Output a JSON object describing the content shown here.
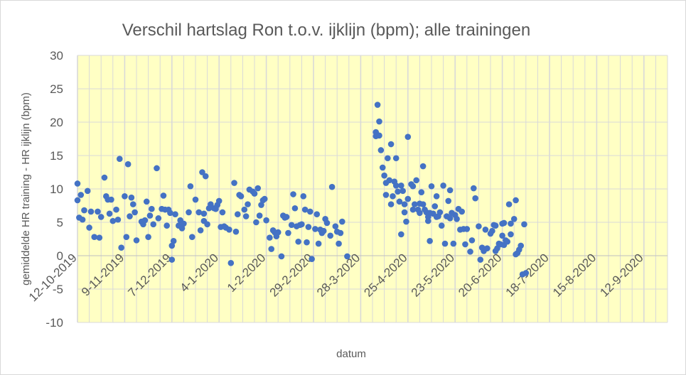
{
  "chart_data": {
    "type": "scatter",
    "title": "Verschil hartslag Ron t.o.v. ijklijn (bpm); alle trainingen",
    "xlabel": "datum",
    "ylabel": "gemiddelde HR training - HR ijklijn (bpm)",
    "ylim": [
      -10,
      30
    ],
    "yticks": [
      -10,
      -5,
      0,
      5,
      10,
      15,
      20,
      25,
      30
    ],
    "xlim": [
      "2019-10-12",
      "2020-09-26"
    ],
    "xtick_labels": [
      "12-10-2019",
      "9-11-2019",
      "7-12-2019",
      "4-1-2020",
      "1-2-2020",
      "29-2-2020",
      "28-3-2020",
      "25-4-2020",
      "23-5-2020",
      "20-6-2020",
      "18-7-2020",
      "15-8-2020",
      "12-9-2020"
    ],
    "grid": true,
    "legend": "none",
    "colors": {
      "points": "#4472c4",
      "plot_background": "#ffffc4",
      "gridlines": "#d9d9d9",
      "text": "#595959"
    },
    "points": [
      {
        "x": "2019-10-12",
        "y": 8.3
      },
      {
        "x": "2019-10-12",
        "y": 10.8
      },
      {
        "x": "2019-10-13",
        "y": 5.7
      },
      {
        "x": "2019-10-14",
        "y": 9.1
      },
      {
        "x": "2019-10-15",
        "y": 5.4
      },
      {
        "x": "2019-10-16",
        "y": 6.8
      },
      {
        "x": "2019-10-18",
        "y": 9.7
      },
      {
        "x": "2019-10-19",
        "y": 4.2
      },
      {
        "x": "2019-10-20",
        "y": 6.6
      },
      {
        "x": "2019-10-22",
        "y": 2.8
      },
      {
        "x": "2019-10-24",
        "y": 6.6
      },
      {
        "x": "2019-10-25",
        "y": 2.7
      },
      {
        "x": "2019-10-26",
        "y": 5.8
      },
      {
        "x": "2019-10-28",
        "y": 11.7
      },
      {
        "x": "2019-10-29",
        "y": 8.9
      },
      {
        "x": "2019-10-30",
        "y": 8.4
      },
      {
        "x": "2019-10-31",
        "y": 6.3
      },
      {
        "x": "2019-11-01",
        "y": 8.4
      },
      {
        "x": "2019-11-02",
        "y": 5.2
      },
      {
        "x": "2019-11-04",
        "y": 6.9
      },
      {
        "x": "2019-11-05",
        "y": 5.4
      },
      {
        "x": "2019-11-06",
        "y": 14.5
      },
      {
        "x": "2019-11-07",
        "y": 1.2
      },
      {
        "x": "2019-11-09",
        "y": 8.9
      },
      {
        "x": "2019-11-10",
        "y": 2.8
      },
      {
        "x": "2019-11-11",
        "y": 13.7
      },
      {
        "x": "2019-11-12",
        "y": 5.9
      },
      {
        "x": "2019-11-13",
        "y": 8.7
      },
      {
        "x": "2019-11-14",
        "y": 7.7
      },
      {
        "x": "2019-11-15",
        "y": 6.5
      },
      {
        "x": "2019-11-16",
        "y": 2.3
      },
      {
        "x": "2019-11-19",
        "y": 5.1
      },
      {
        "x": "2019-11-20",
        "y": 4.7
      },
      {
        "x": "2019-11-21",
        "y": 5.3
      },
      {
        "x": "2019-11-22",
        "y": 8.1
      },
      {
        "x": "2019-11-23",
        "y": 2.8
      },
      {
        "x": "2019-11-24",
        "y": 6.0
      },
      {
        "x": "2019-11-25",
        "y": 7.0
      },
      {
        "x": "2019-11-26",
        "y": 4.7
      },
      {
        "x": "2019-11-28",
        "y": 13.1
      },
      {
        "x": "2019-11-29",
        "y": 5.6
      },
      {
        "x": "2019-12-01",
        "y": 7.0
      },
      {
        "x": "2019-12-02",
        "y": 9.0
      },
      {
        "x": "2019-12-03",
        "y": 6.9
      },
      {
        "x": "2019-12-04",
        "y": 4.5
      },
      {
        "x": "2019-12-05",
        "y": 6.9
      },
      {
        "x": "2019-12-06",
        "y": 6.4
      },
      {
        "x": "2019-12-07",
        "y": -0.6
      },
      {
        "x": "2019-12-07",
        "y": 1.5
      },
      {
        "x": "2019-12-08",
        "y": 2.2
      },
      {
        "x": "2019-12-09",
        "y": 6.2
      },
      {
        "x": "2019-12-11",
        "y": 4.5
      },
      {
        "x": "2019-12-12",
        "y": 5.3
      },
      {
        "x": "2019-12-13",
        "y": 4.1
      },
      {
        "x": "2019-12-14",
        "y": 4.8
      },
      {
        "x": "2019-12-17",
        "y": 6.5
      },
      {
        "x": "2019-12-18",
        "y": 10.4
      },
      {
        "x": "2019-12-19",
        "y": 2.8
      },
      {
        "x": "2019-12-21",
        "y": 8.4
      },
      {
        "x": "2019-12-23",
        "y": 6.5
      },
      {
        "x": "2019-12-24",
        "y": 3.8
      },
      {
        "x": "2019-12-25",
        "y": 12.5
      },
      {
        "x": "2019-12-26",
        "y": 6.3
      },
      {
        "x": "2019-12-26",
        "y": 5.2
      },
      {
        "x": "2019-12-27",
        "y": 11.9
      },
      {
        "x": "2019-12-28",
        "y": 4.7
      },
      {
        "x": "2019-12-29",
        "y": 7.1
      },
      {
        "x": "2019-12-30",
        "y": 7.7
      },
      {
        "x": "2020-01-01",
        "y": 7.1
      },
      {
        "x": "2020-01-02",
        "y": 7.0
      },
      {
        "x": "2020-01-03",
        "y": 7.6
      },
      {
        "x": "2020-01-04",
        "y": 8.2
      },
      {
        "x": "2020-01-05",
        "y": 4.3
      },
      {
        "x": "2020-01-06",
        "y": 6.5
      },
      {
        "x": "2020-01-07",
        "y": 4.4
      },
      {
        "x": "2020-01-08",
        "y": 4.2
      },
      {
        "x": "2020-01-10",
        "y": 3.9
      },
      {
        "x": "2020-01-11",
        "y": -1.1
      },
      {
        "x": "2020-01-13",
        "y": 10.9
      },
      {
        "x": "2020-01-14",
        "y": 3.6
      },
      {
        "x": "2020-01-15",
        "y": 6.2
      },
      {
        "x": "2020-01-16",
        "y": 9.1
      },
      {
        "x": "2020-01-17",
        "y": 8.9
      },
      {
        "x": "2020-01-19",
        "y": 6.9
      },
      {
        "x": "2020-01-20",
        "y": 5.9
      },
      {
        "x": "2020-01-21",
        "y": 7.7
      },
      {
        "x": "2020-01-22",
        "y": 9.9
      },
      {
        "x": "2020-01-24",
        "y": 9.6
      },
      {
        "x": "2020-01-25",
        "y": 9.3
      },
      {
        "x": "2020-01-26",
        "y": 5.0
      },
      {
        "x": "2020-01-27",
        "y": 10.1
      },
      {
        "x": "2020-01-28",
        "y": 6.0
      },
      {
        "x": "2020-01-29",
        "y": 7.6
      },
      {
        "x": "2020-01-30",
        "y": 8.3
      },
      {
        "x": "2020-01-31",
        "y": 8.5
      },
      {
        "x": "2020-02-01",
        "y": 5.3
      },
      {
        "x": "2020-02-03",
        "y": 2.7
      },
      {
        "x": "2020-02-04",
        "y": 1.0
      },
      {
        "x": "2020-02-05",
        "y": 3.8
      },
      {
        "x": "2020-02-06",
        "y": 3.5
      },
      {
        "x": "2020-02-07",
        "y": 2.9
      },
      {
        "x": "2020-02-08",
        "y": 3.5
      },
      {
        "x": "2020-02-10",
        "y": -0.1
      },
      {
        "x": "2020-02-11",
        "y": 6.0
      },
      {
        "x": "2020-02-12",
        "y": 5.7
      },
      {
        "x": "2020-02-13",
        "y": 5.8
      },
      {
        "x": "2020-02-14",
        "y": 3.4
      },
      {
        "x": "2020-02-16",
        "y": 4.6
      },
      {
        "x": "2020-02-17",
        "y": 9.2
      },
      {
        "x": "2020-02-18",
        "y": 7.1
      },
      {
        "x": "2020-02-19",
        "y": 4.4
      },
      {
        "x": "2020-02-20",
        "y": 2.1
      },
      {
        "x": "2020-02-21",
        "y": 4.6
      },
      {
        "x": "2020-02-22",
        "y": 4.7
      },
      {
        "x": "2020-02-23",
        "y": 8.9
      },
      {
        "x": "2020-02-24",
        "y": 6.9
      },
      {
        "x": "2020-02-25",
        "y": 2.0
      },
      {
        "x": "2020-02-26",
        "y": 4.3
      },
      {
        "x": "2020-02-27",
        "y": 6.6
      },
      {
        "x": "2020-02-28",
        "y": -0.5
      },
      {
        "x": "2020-03-01",
        "y": 4.0
      },
      {
        "x": "2020-03-02",
        "y": 6.2
      },
      {
        "x": "2020-03-03",
        "y": 1.8
      },
      {
        "x": "2020-03-04",
        "y": 3.9
      },
      {
        "x": "2020-03-05",
        "y": 3.4
      },
      {
        "x": "2020-03-06",
        "y": 3.7
      },
      {
        "x": "2020-03-07",
        "y": 5.5
      },
      {
        "x": "2020-03-08",
        "y": 4.9
      },
      {
        "x": "2020-03-10",
        "y": 3.0
      },
      {
        "x": "2020-03-11",
        "y": 10.3
      },
      {
        "x": "2020-03-13",
        "y": 4.4
      },
      {
        "x": "2020-03-14",
        "y": 3.6
      },
      {
        "x": "2020-03-15",
        "y": 1.8
      },
      {
        "x": "2020-03-16",
        "y": 3.4
      },
      {
        "x": "2020-03-17",
        "y": 5.1
      },
      {
        "x": "2020-03-20",
        "y": -0.1
      },
      {
        "x": "2020-04-06",
        "y": 17.9
      },
      {
        "x": "2020-04-06",
        "y": 18.5
      },
      {
        "x": "2020-04-07",
        "y": 22.6
      },
      {
        "x": "2020-04-08",
        "y": 20.1
      },
      {
        "x": "2020-04-08",
        "y": 18.0
      },
      {
        "x": "2020-04-09",
        "y": 15.8
      },
      {
        "x": "2020-04-10",
        "y": 13.2
      },
      {
        "x": "2020-04-11",
        "y": 12.0
      },
      {
        "x": "2020-04-12",
        "y": 10.9
      },
      {
        "x": "2020-04-12",
        "y": 9.1
      },
      {
        "x": "2020-04-13",
        "y": 14.6
      },
      {
        "x": "2020-04-14",
        "y": 11.3
      },
      {
        "x": "2020-04-15",
        "y": 16.7
      },
      {
        "x": "2020-04-15",
        "y": 7.7
      },
      {
        "x": "2020-04-16",
        "y": 8.9
      },
      {
        "x": "2020-04-17",
        "y": 11.1
      },
      {
        "x": "2020-04-18",
        "y": 10.5
      },
      {
        "x": "2020-04-18",
        "y": 14.6
      },
      {
        "x": "2020-04-19",
        "y": 9.6
      },
      {
        "x": "2020-04-20",
        "y": 8.1
      },
      {
        "x": "2020-04-21",
        "y": 10.5
      },
      {
        "x": "2020-04-21",
        "y": 3.2
      },
      {
        "x": "2020-04-22",
        "y": 9.7
      },
      {
        "x": "2020-04-23",
        "y": 6.5
      },
      {
        "x": "2020-04-23",
        "y": 7.7
      },
      {
        "x": "2020-04-24",
        "y": 5.1
      },
      {
        "x": "2020-04-25",
        "y": 8.5
      },
      {
        "x": "2020-04-25",
        "y": 17.8
      },
      {
        "x": "2020-04-27",
        "y": 10.7
      },
      {
        "x": "2020-04-28",
        "y": 10.4
      },
      {
        "x": "2020-04-28",
        "y": 6.9
      },
      {
        "x": "2020-04-29",
        "y": 7.7
      },
      {
        "x": "2020-04-30",
        "y": 11.3
      },
      {
        "x": "2020-05-01",
        "y": 6.9
      },
      {
        "x": "2020-05-02",
        "y": 6.4
      },
      {
        "x": "2020-05-02",
        "y": 7.8
      },
      {
        "x": "2020-05-03",
        "y": 9.5
      },
      {
        "x": "2020-05-04",
        "y": 7.7
      },
      {
        "x": "2020-05-04",
        "y": 13.4
      },
      {
        "x": "2020-05-05",
        "y": 6.9
      },
      {
        "x": "2020-05-06",
        "y": 6.5
      },
      {
        "x": "2020-05-07",
        "y": 5.8
      },
      {
        "x": "2020-05-07",
        "y": 5.2
      },
      {
        "x": "2020-05-08",
        "y": 6.4
      },
      {
        "x": "2020-05-08",
        "y": 2.2
      },
      {
        "x": "2020-05-09",
        "y": 10.4
      },
      {
        "x": "2020-05-10",
        "y": 6.3
      },
      {
        "x": "2020-05-11",
        "y": 7.4
      },
      {
        "x": "2020-05-12",
        "y": 5.8
      },
      {
        "x": "2020-05-12",
        "y": 8.9
      },
      {
        "x": "2020-05-13",
        "y": 5.9
      },
      {
        "x": "2020-05-14",
        "y": 6.5
      },
      {
        "x": "2020-05-15",
        "y": 4.5
      },
      {
        "x": "2020-05-16",
        "y": 10.5
      },
      {
        "x": "2020-05-17",
        "y": 1.8
      },
      {
        "x": "2020-05-18",
        "y": 5.9
      },
      {
        "x": "2020-05-19",
        "y": 8.2
      },
      {
        "x": "2020-05-20",
        "y": 9.8
      },
      {
        "x": "2020-05-20",
        "y": 5.6
      },
      {
        "x": "2020-05-21",
        "y": 6.4
      },
      {
        "x": "2020-05-22",
        "y": 1.8
      },
      {
        "x": "2020-05-23",
        "y": 6.1
      },
      {
        "x": "2020-05-24",
        "y": 5.5
      },
      {
        "x": "2020-05-25",
        "y": 7.0
      },
      {
        "x": "2020-05-26",
        "y": 3.9
      },
      {
        "x": "2020-05-27",
        "y": 6.6
      },
      {
        "x": "2020-05-28",
        "y": 4.0
      },
      {
        "x": "2020-05-29",
        "y": 1.7
      },
      {
        "x": "2020-05-30",
        "y": 4.0
      },
      {
        "x": "2020-06-01",
        "y": 0.6
      },
      {
        "x": "2020-06-02",
        "y": 2.3
      },
      {
        "x": "2020-06-03",
        "y": 10.1
      },
      {
        "x": "2020-06-04",
        "y": 8.6
      },
      {
        "x": "2020-06-06",
        "y": 4.4
      },
      {
        "x": "2020-06-07",
        "y": -0.6
      },
      {
        "x": "2020-06-08",
        "y": 1.2
      },
      {
        "x": "2020-06-09",
        "y": 0.7
      },
      {
        "x": "2020-06-10",
        "y": 3.9
      },
      {
        "x": "2020-06-11",
        "y": 1.1
      },
      {
        "x": "2020-06-13",
        "y": 3.3
      },
      {
        "x": "2020-06-14",
        "y": 3.7
      },
      {
        "x": "2020-06-15",
        "y": 4.6
      },
      {
        "x": "2020-06-16",
        "y": 0.7
      },
      {
        "x": "2020-06-16",
        "y": 4.5
      },
      {
        "x": "2020-06-17",
        "y": 1.1
      },
      {
        "x": "2020-06-18",
        "y": 1.8
      },
      {
        "x": "2020-06-19",
        "y": 1.7
      },
      {
        "x": "2020-06-20",
        "y": 3.0
      },
      {
        "x": "2020-06-20",
        "y": 4.8
      },
      {
        "x": "2020-06-21",
        "y": 1.6
      },
      {
        "x": "2020-06-21",
        "y": 4.9
      },
      {
        "x": "2020-06-22",
        "y": 2.3
      },
      {
        "x": "2020-06-23",
        "y": 2.1
      },
      {
        "x": "2020-06-24",
        "y": 7.7
      },
      {
        "x": "2020-06-25",
        "y": 4.8
      },
      {
        "x": "2020-06-25",
        "y": 3.2
      },
      {
        "x": "2020-06-27",
        "y": 5.5
      },
      {
        "x": "2020-06-28",
        "y": 8.3
      },
      {
        "x": "2020-06-28",
        "y": 0.2
      },
      {
        "x": "2020-06-29",
        "y": 0.4
      },
      {
        "x": "2020-06-30",
        "y": 0.9
      },
      {
        "x": "2020-07-01",
        "y": 1.5
      },
      {
        "x": "2020-07-02",
        "y": -2.8
      },
      {
        "x": "2020-07-03",
        "y": 4.7
      },
      {
        "x": "2020-07-04",
        "y": -2.6
      }
    ]
  }
}
